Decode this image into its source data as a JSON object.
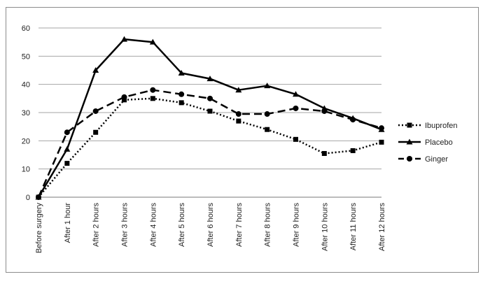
{
  "chart_data": {
    "type": "line",
    "title": "",
    "xlabel": "",
    "ylabel": "",
    "ylim": [
      0,
      60
    ],
    "yticks": [
      0,
      10,
      20,
      30,
      40,
      50,
      60
    ],
    "grid": "horizontal",
    "legend_position": "right",
    "categories": [
      "Before surgery",
      "After 1 hour",
      "After 2 hours",
      "After 3 hours",
      "After 4 hours",
      "After 5 hours",
      "After 6 hours",
      "After 7 hours",
      "After 8 hours",
      "After 9 hours",
      "After 10 hours",
      "After 11 hours",
      "After 12 hours"
    ],
    "series": [
      {
        "name": "Ibuprofen",
        "values": [
          0,
          12,
          23,
          34.5,
          35,
          33.5,
          30.5,
          27,
          24,
          20.5,
          15.5,
          16.5,
          19.5
        ],
        "marker": "square",
        "dash": "dotted",
        "color": "#000000"
      },
      {
        "name": "Placebo",
        "values": [
          0,
          17,
          45,
          56,
          55,
          44,
          42,
          38,
          39.5,
          36.5,
          31.5,
          28,
          24
        ],
        "marker": "triangle",
        "dash": "solid",
        "color": "#000000"
      },
      {
        "name": "Ginger",
        "values": [
          0,
          23,
          30.5,
          35.5,
          38,
          36.5,
          35,
          29.5,
          29.5,
          31.5,
          30.5,
          27.5,
          24.5
        ],
        "marker": "circle",
        "dash": "dashed",
        "color": "#000000"
      }
    ]
  }
}
